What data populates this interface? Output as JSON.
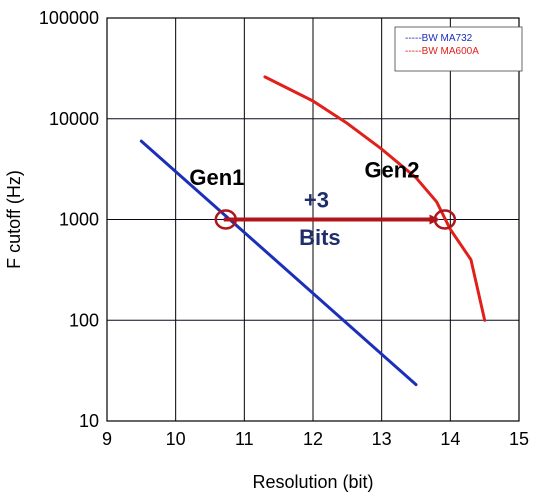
{
  "chart_data": {
    "type": "line",
    "title": "",
    "xlabel": "Resolution (bit)",
    "ylabel": "F cutoff (Hz)",
    "xlim": [
      9,
      15
    ],
    "ylim": [
      10,
      100000
    ],
    "y_scale": "log",
    "grid": true,
    "legend_position": "top-right",
    "x_ticks": [
      "9",
      "10",
      "11",
      "12",
      "13",
      "14",
      "15"
    ],
    "y_ticks": [
      "10",
      "100",
      "1000",
      "10000",
      "100000"
    ],
    "series": [
      {
        "name": "-----BW MA732",
        "color": "#1c2fb8",
        "x": [
          9.5,
          13.5
        ],
        "y": [
          6000,
          23
        ]
      },
      {
        "name": "-----BW MA600A",
        "color": "#e0201b",
        "x": [
          11.3,
          12.0,
          12.5,
          13.0,
          13.5,
          13.8,
          14.0,
          14.3,
          14.5
        ],
        "y": [
          26000,
          15000,
          9000,
          5000,
          2600,
          1500,
          800,
          400,
          100
        ]
      }
    ],
    "annotations": [
      {
        "text": "Gen1",
        "x": 10.6,
        "y": 2200,
        "color": "#000000"
      },
      {
        "text": "Gen2",
        "x": 13.15,
        "y": 2600,
        "color": "#000000"
      },
      {
        "text": "+3",
        "x": 12.05,
        "y": 1320,
        "color": "#1f2e6b"
      },
      {
        "text": "Bits",
        "x": 12.1,
        "y": 560,
        "color": "#1f2e6b"
      }
    ],
    "arrow": {
      "x_from": 10.7,
      "x_to": 13.9,
      "y": 1000,
      "color": "#b0151b"
    },
    "circles": [
      {
        "x": 10.73,
        "y": 1000,
        "color": "#b0151b"
      },
      {
        "x": 13.92,
        "y": 1000,
        "color": "#b0151b"
      }
    ]
  }
}
